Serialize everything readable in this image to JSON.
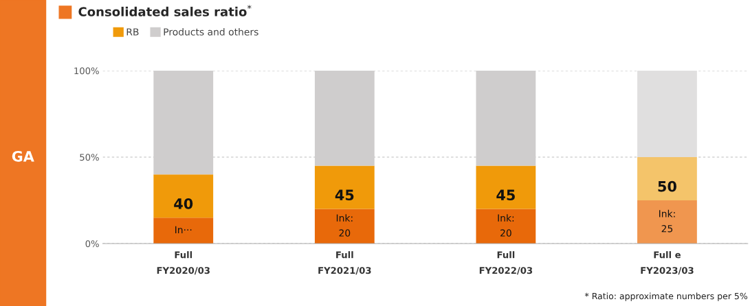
{
  "chart_data": {
    "type": "bar",
    "title": "Consolidated sales ratio$^{*}$",
    "categories": [
      "Full\nFY2020/03",
      "Full\nFY2021/03",
      "Full\nFY2022/03",
      "Full e\nFY2023/03"
    ],
    "stacked": true,
    "series": [
      {
        "colors": [
          "#e8690a",
          "#e8690a",
          "#e8690a",
          "#f0964f"
        ],
        "values": [
          15,
          20,
          20,
          25
        ],
        "value_labels": [
          "In···",
          "Ink:\n20",
          "Ink:\n20",
          "Ink:\n25"
        ]
      },
      {
        "name": "RB",
        "colors": [
          "#f09a0a",
          "#f09a0a",
          "#f09a0a",
          "#f4c46a"
        ],
        "values": [
          25,
          25,
          25,
          25
        ]
      },
      {
        "name": "Products and others",
        "colors": [
          "#cfcdcd",
          "#cfcdcd",
          "#cfcdcd",
          "#e0dfdf"
        ],
        "values": [
          60,
          55,
          55,
          50
        ]
      }
    ],
    "ylim": [
      0,
      100
    ],
    "yticks": [
      {
        "value": 0,
        "label": "0%"
      },
      {
        "value": 50,
        "label": "50%"
      },
      {
        "value": 100,
        "label": "100%"
      }
    ],
    "grid": "y",
    "legend": "top left",
    "annotations": [
      "GA",
      "* Ratio: approximate numbers per 5%",
      {
        "text": "40",
        "x": "Full\nFY2020/03",
        "y": 40
      },
      {
        "text": "45",
        "x": "Full\nFY2021/03",
        "y": 45
      },
      {
        "text": "45",
        "x": "Full\nFY2022/03",
        "y": 45
      },
      {
        "text": "50",
        "x": "Full e\nFY2023/03",
        "y": 50
      }
    ]
  }
}
